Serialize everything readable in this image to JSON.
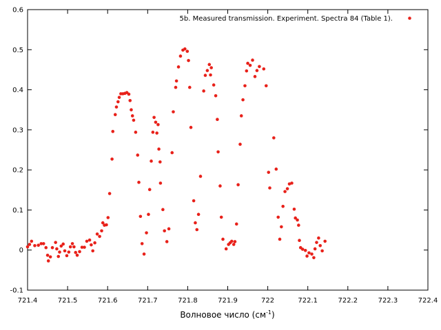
{
  "chart_data": {
    "type": "scatter",
    "title": "",
    "xlabel": "Волновое число (см",
    "xlabel_sup": "-1",
    "xlabel_end": ")",
    "ylabel": "",
    "xlim": [
      721.4,
      722.4
    ],
    "ylim": [
      -0.1,
      0.6
    ],
    "x_ticks": [
      721.4,
      721.5,
      721.6,
      721.7,
      721.8,
      721.9,
      722.0,
      722.1,
      722.2,
      722.3,
      722.4
    ],
    "x_tick_labels": [
      "721.4",
      "721.5",
      "721.6",
      "721.7",
      "721.8",
      "721.9",
      "722",
      "722.1",
      "722.2",
      "722.3",
      "722.4"
    ],
    "y_ticks": [
      -0.1,
      0,
      0.1,
      0.2,
      0.3,
      0.4,
      0.5,
      0.6
    ],
    "y_tick_labels": [
      "-0.1",
      "0",
      "0.1",
      "0.2",
      "0.3",
      "0.4",
      "0.5",
      "0.6"
    ],
    "grid": false,
    "legend_position": "top-right",
    "series": [
      {
        "name": "5b. Measured transmission. Experiment. Spectra 84 (Table 1).",
        "color": "#e8211a",
        "marker": "circle",
        "points": [
          [
            721.4,
            0.008
          ],
          [
            721.405,
            0.014
          ],
          [
            721.41,
            0.022
          ],
          [
            721.418,
            0.011
          ],
          [
            721.427,
            0.012
          ],
          [
            721.434,
            0.016
          ],
          [
            721.44,
            0.016
          ],
          [
            721.446,
            0.006
          ],
          [
            721.45,
            -0.013
          ],
          [
            721.452,
            -0.027
          ],
          [
            721.457,
            -0.017
          ],
          [
            721.462,
            0.006
          ],
          [
            721.47,
            0.019
          ],
          [
            721.473,
            0.003
          ],
          [
            721.477,
            -0.016
          ],
          [
            721.48,
            -0.005
          ],
          [
            721.484,
            0.01
          ],
          [
            721.489,
            0.015
          ],
          [
            721.493,
            -0.002
          ],
          [
            721.498,
            -0.014
          ],
          [
            721.503,
            -0.005
          ],
          [
            721.507,
            0.008
          ],
          [
            721.512,
            0.016
          ],
          [
            721.516,
            0.008
          ],
          [
            721.52,
            -0.006
          ],
          [
            721.524,
            -0.013
          ],
          [
            721.53,
            -0.004
          ],
          [
            721.536,
            0.007
          ],
          [
            721.542,
            0.007
          ],
          [
            721.548,
            0.022
          ],
          [
            721.555,
            0.025
          ],
          [
            721.559,
            0.013
          ],
          [
            721.563,
            -0.002
          ],
          [
            721.568,
            0.018
          ],
          [
            721.574,
            0.04
          ],
          [
            721.58,
            0.034
          ],
          [
            721.585,
            0.048
          ],
          [
            721.588,
            0.068
          ],
          [
            721.592,
            0.062
          ],
          [
            721.597,
            0.063
          ],
          [
            721.601,
            0.081
          ],
          [
            721.605,
            0.141
          ],
          [
            721.611,
            0.227
          ],
          [
            721.613,
            0.296
          ],
          [
            721.619,
            0.338
          ],
          [
            721.622,
            0.357
          ],
          [
            721.626,
            0.37
          ],
          [
            721.629,
            0.381
          ],
          [
            721.633,
            0.39
          ],
          [
            721.638,
            0.39
          ],
          [
            721.643,
            0.391
          ],
          [
            721.648,
            0.393
          ],
          [
            721.653,
            0.389
          ],
          [
            721.656,
            0.373
          ],
          [
            721.659,
            0.35
          ],
          [
            721.662,
            0.335
          ],
          [
            721.665,
            0.324
          ],
          [
            721.67,
            0.294
          ],
          [
            721.675,
            0.237
          ],
          [
            721.678,
            0.169
          ],
          [
            721.682,
            0.084
          ],
          [
            721.686,
            0.016
          ],
          [
            721.691,
            -0.01
          ],
          [
            721.697,
            0.043
          ],
          [
            721.702,
            0.089
          ],
          [
            721.705,
            0.151
          ],
          [
            721.709,
            0.222
          ],
          [
            721.713,
            0.294
          ],
          [
            721.716,
            0.331
          ],
          [
            721.72,
            0.319
          ],
          [
            721.723,
            0.292
          ],
          [
            721.726,
            0.313
          ],
          [
            721.728,
            0.252
          ],
          [
            721.731,
            0.22
          ],
          [
            721.732,
            0.167
          ],
          [
            721.738,
            0.101
          ],
          [
            721.742,
            0.048
          ],
          [
            721.748,
            0.021
          ],
          [
            721.753,
            0.053
          ],
          [
            721.761,
            0.243
          ],
          [
            721.764,
            0.345
          ],
          [
            721.77,
            0.406
          ],
          [
            721.772,
            0.422
          ],
          [
            721.777,
            0.457
          ],
          [
            721.782,
            0.484
          ],
          [
            721.788,
            0.499
          ],
          [
            721.793,
            0.502
          ],
          [
            721.799,
            0.496
          ],
          [
            721.802,
            0.473
          ],
          [
            721.805,
            0.406
          ],
          [
            721.808,
            0.306
          ],
          [
            721.815,
            0.123
          ],
          [
            721.819,
            0.068
          ],
          [
            721.823,
            0.051
          ],
          [
            721.827,
            0.089
          ],
          [
            721.832,
            0.184
          ],
          [
            721.84,
            0.397
          ],
          [
            721.844,
            0.436
          ],
          [
            721.849,
            0.448
          ],
          [
            721.854,
            0.463
          ],
          [
            721.857,
            0.437
          ],
          [
            721.859,
            0.455
          ],
          [
            721.865,
            0.412
          ],
          [
            721.87,
            0.385
          ],
          [
            721.874,
            0.326
          ],
          [
            721.876,
            0.245
          ],
          [
            721.881,
            0.16
          ],
          [
            721.884,
            0.082
          ],
          [
            721.888,
            0.027
          ],
          [
            721.896,
            0.003
          ],
          [
            721.902,
            0.014
          ],
          [
            721.906,
            0.018
          ],
          [
            721.91,
            0.022
          ],
          [
            721.915,
            0.014
          ],
          [
            721.918,
            0.021
          ],
          [
            721.922,
            0.065
          ],
          [
            721.926,
            0.163
          ],
          [
            721.931,
            0.264
          ],
          [
            721.934,
            0.335
          ],
          [
            721.938,
            0.375
          ],
          [
            721.943,
            0.41
          ],
          [
            721.947,
            0.447
          ],
          [
            721.95,
            0.466
          ],
          [
            721.956,
            0.461
          ],
          [
            721.962,
            0.474
          ],
          [
            721.968,
            0.433
          ],
          [
            721.973,
            0.448
          ],
          [
            721.979,
            0.458
          ],
          [
            721.99,
            0.452
          ],
          [
            721.996,
            0.41
          ],
          [
            722.002,
            0.194
          ],
          [
            722.005,
            0.155
          ],
          [
            722.015,
            0.28
          ],
          [
            722.021,
            0.202
          ],
          [
            722.026,
            0.082
          ],
          [
            722.03,
            0.027
          ],
          [
            722.034,
            0.058
          ],
          [
            722.038,
            0.109
          ],
          [
            722.043,
            0.146
          ],
          [
            722.049,
            0.153
          ],
          [
            722.054,
            0.165
          ],
          [
            722.06,
            0.167
          ],
          [
            722.066,
            0.102
          ],
          [
            722.069,
            0.08
          ],
          [
            722.074,
            0.075
          ],
          [
            722.077,
            0.062
          ],
          [
            722.079,
            0.024
          ],
          [
            722.082,
            0.006
          ],
          [
            722.087,
            0.002
          ],
          [
            722.094,
            -0.001
          ],
          [
            722.098,
            -0.015
          ],
          [
            722.103,
            -0.007
          ],
          [
            722.11,
            -0.01
          ],
          [
            722.115,
            -0.019
          ],
          [
            722.118,
            0.003
          ],
          [
            722.122,
            0.019
          ],
          [
            722.127,
            0.03
          ],
          [
            722.131,
            0.011
          ],
          [
            722.136,
            -0.002
          ],
          [
            722.143,
            0.022
          ]
        ]
      }
    ]
  }
}
